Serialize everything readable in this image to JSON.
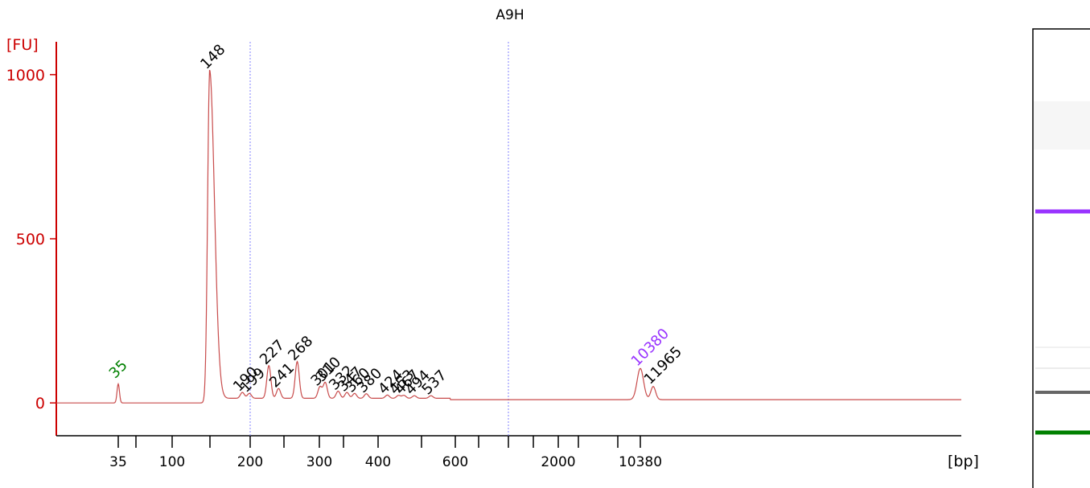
{
  "chart_data": {
    "type": "line",
    "title": "A9H",
    "y_unit_label": "[FU]",
    "x_unit_label": "[bp]",
    "ylim": [
      -100,
      1100
    ],
    "y_ticks": [
      "0",
      "500",
      "1000"
    ],
    "y_tick_values": [
      0,
      500,
      1000
    ],
    "x_tick_labels": [
      "35",
      "100",
      "200",
      "300",
      "400",
      "600",
      "2000",
      "10380"
    ],
    "grid": false,
    "colors": {
      "trace": "#c84b4b",
      "axis": "#cc0000",
      "lower_marker": "#008000",
      "upper_marker": "#9933ff",
      "peak_label": "#000000",
      "guide_line": "#8080ff"
    },
    "peaks": [
      {
        "label": "35",
        "size_bp": 35,
        "fu": 58,
        "kind": "lower_marker"
      },
      {
        "label": "148",
        "size_bp": 148,
        "fu": 1000,
        "kind": "peak"
      },
      {
        "label": "190",
        "size_bp": 190,
        "fu": 18,
        "kind": "peak"
      },
      {
        "label": "199",
        "size_bp": 199,
        "fu": 15,
        "kind": "peak"
      },
      {
        "label": "227",
        "size_bp": 227,
        "fu": 100,
        "kind": "peak"
      },
      {
        "label": "241",
        "size_bp": 241,
        "fu": 30,
        "kind": "peak"
      },
      {
        "label": "268",
        "size_bp": 268,
        "fu": 112,
        "kind": "peak"
      },
      {
        "label": "301",
        "size_bp": 301,
        "fu": 35,
        "kind": "peak"
      },
      {
        "label": "310",
        "size_bp": 310,
        "fu": 48,
        "kind": "peak"
      },
      {
        "label": "332",
        "size_bp": 332,
        "fu": 22,
        "kind": "peak"
      },
      {
        "label": "347",
        "size_bp": 347,
        "fu": 18,
        "kind": "peak"
      },
      {
        "label": "360",
        "size_bp": 360,
        "fu": 15,
        "kind": "peak"
      },
      {
        "label": "380",
        "size_bp": 380,
        "fu": 14,
        "kind": "peak"
      },
      {
        "label": "424",
        "size_bp": 424,
        "fu": 10,
        "kind": "peak"
      },
      {
        "label": "453",
        "size_bp": 453,
        "fu": 9,
        "kind": "peak"
      },
      {
        "label": "467",
        "size_bp": 467,
        "fu": 9,
        "kind": "peak"
      },
      {
        "label": "494",
        "size_bp": 494,
        "fu": 8,
        "kind": "peak"
      },
      {
        "label": "537",
        "size_bp": 537,
        "fu": 8,
        "kind": "peak"
      },
      {
        "label": "10380",
        "size_bp": 10380,
        "fu": 95,
        "kind": "upper_marker"
      },
      {
        "label": "11965",
        "size_bp": 11965,
        "fu": 40,
        "kind": "peak"
      }
    ],
    "baseline_fu": 10
  },
  "gel": {
    "background": "#ffffff",
    "bands": [
      {
        "name": "upper-marker-band",
        "color": "#9933ff",
        "strength": 1.0
      },
      {
        "name": "faint-band-a",
        "color": "#d0d0d0",
        "strength": 0.3
      },
      {
        "name": "faint-band-b",
        "color": "#c8c8c8",
        "strength": 0.35
      },
      {
        "name": "main-band",
        "color": "#555555",
        "strength": 0.9
      },
      {
        "name": "lower-marker-band",
        "color": "#008000",
        "strength": 1.0
      }
    ]
  }
}
